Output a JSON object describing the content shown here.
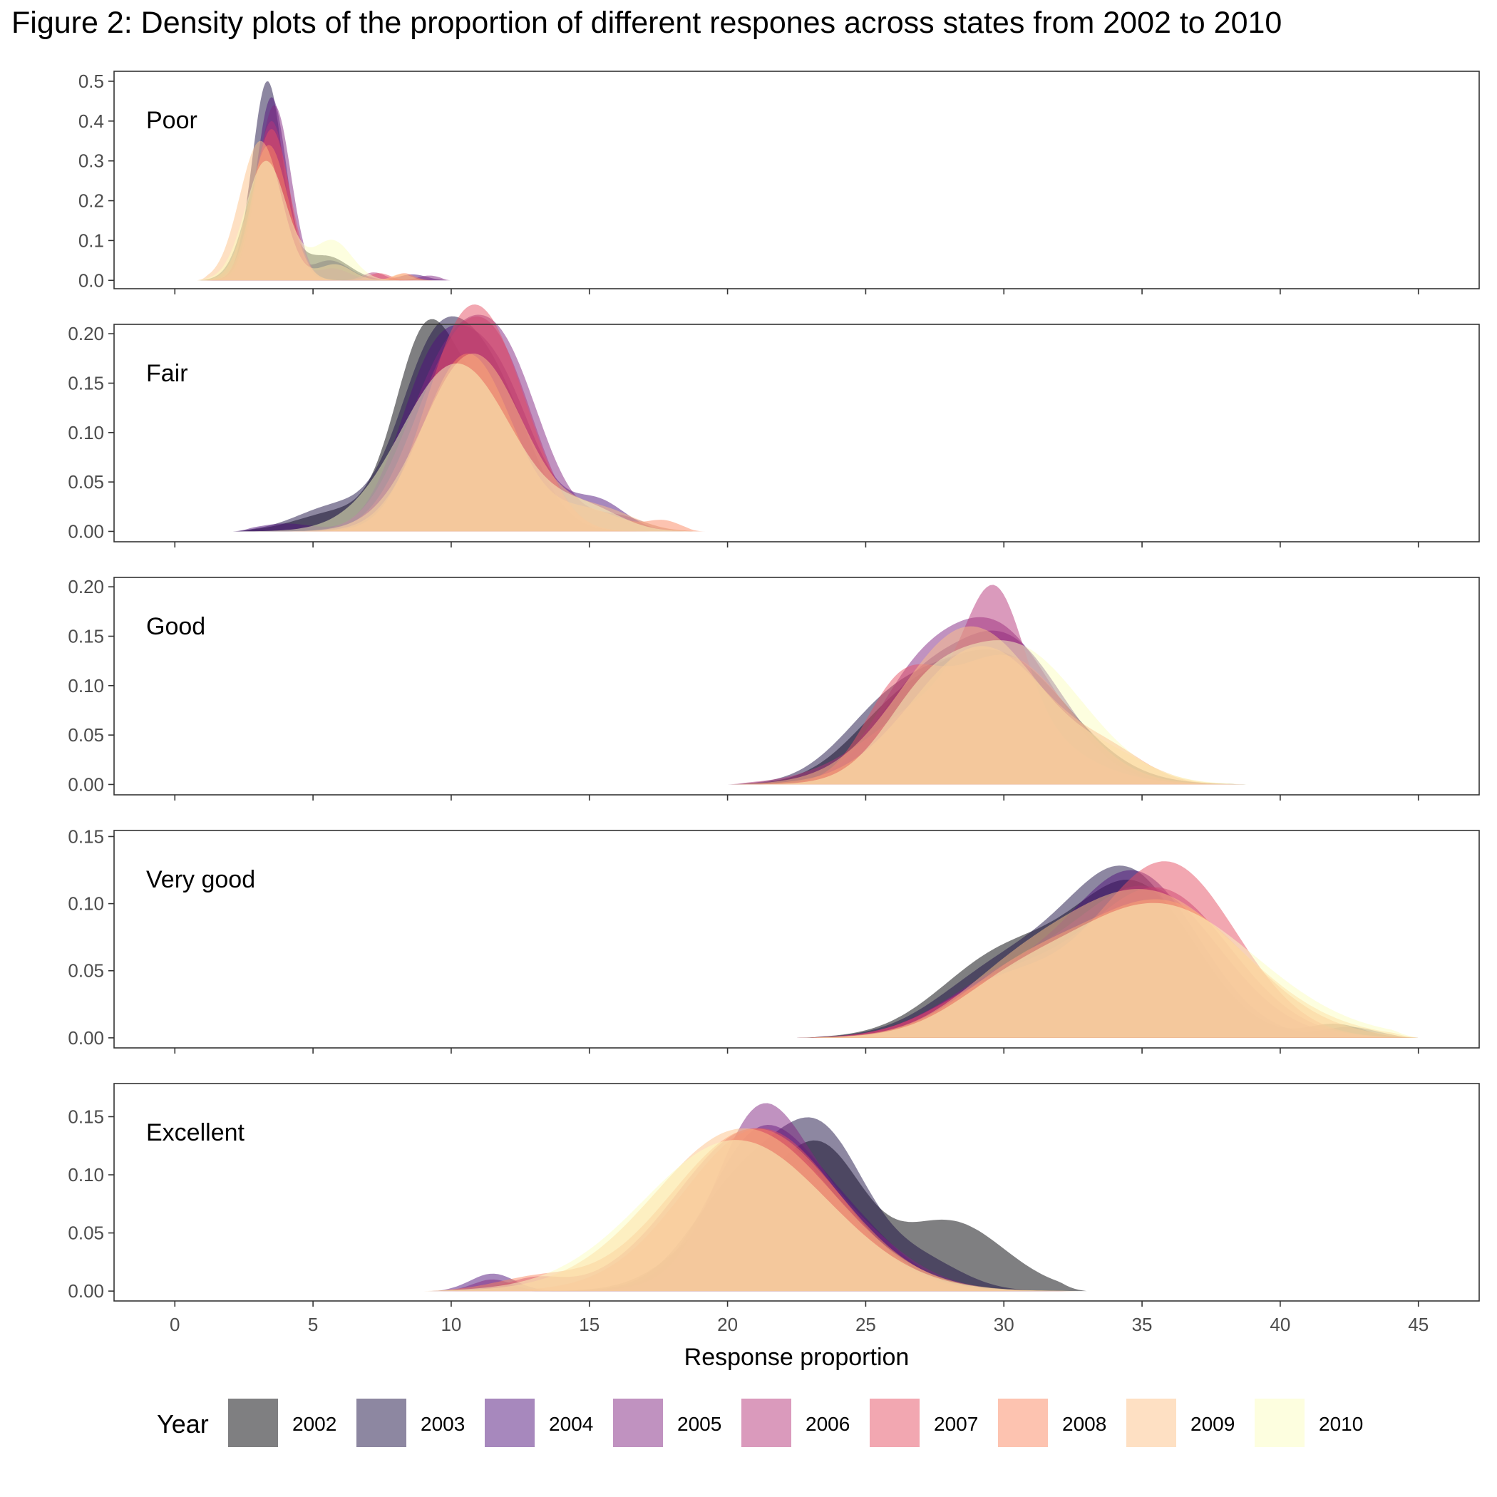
{
  "chart_data": {
    "type": "area",
    "title": "Figure 2: Density plots of the proportion of different respones across states from 2002 to 2010",
    "xlabel": "Response proportion",
    "xlim": [
      -2.2,
      47.2
    ],
    "xticks": [
      "0",
      "5",
      "10",
      "15",
      "20",
      "25",
      "30",
      "35",
      "40",
      "45"
    ],
    "grid": false,
    "legend_title": "Year",
    "legend_position": "bottom",
    "years": [
      {
        "name": "2002",
        "color": "#000004",
        "alpha": 0.5
      },
      {
        "name": "2003",
        "color": "#1c1044",
        "alpha": 0.5
      },
      {
        "name": "2004",
        "color": "#4f127b",
        "alpha": 0.5
      },
      {
        "name": "2005",
        "color": "#812581",
        "alpha": 0.5
      },
      {
        "name": "2006",
        "color": "#b5367a",
        "alpha": 0.5
      },
      {
        "name": "2007",
        "color": "#e55064",
        "alpha": 0.5
      },
      {
        "name": "2008",
        "color": "#fb8761",
        "alpha": 0.5
      },
      {
        "name": "2009",
        "color": "#fec287",
        "alpha": 0.5
      },
      {
        "name": "2010",
        "color": "#fcfdbf",
        "alpha": 0.5
      }
    ],
    "panels": [
      {
        "label": "Poor",
        "ylim": [
          -0.021,
          0.525
        ],
        "yticks": [
          {
            "v": 0.0,
            "t": "0.0"
          },
          {
            "v": 0.1,
            "t": "0.1"
          },
          {
            "v": 0.2,
            "t": "0.2"
          },
          {
            "v": 0.3,
            "t": "0.3"
          },
          {
            "v": 0.4,
            "t": "0.4"
          },
          {
            "v": 0.5,
            "t": "0.5"
          }
        ],
        "range": [
          0.8,
          10
        ],
        "series": [
          {
            "year": "2002",
            "comps": [
              [
                0.3,
                3.3,
                0.7
              ],
              [
                0.06,
                5.5,
                0.8
              ]
            ]
          },
          {
            "year": "2003",
            "comps": [
              [
                0.5,
                3.35,
                0.55
              ],
              [
                0.05,
                5.6,
                0.7
              ]
            ]
          },
          {
            "year": "2004",
            "comps": [
              [
                0.46,
                3.5,
                0.55
              ],
              [
                0.03,
                5.7,
                0.6
              ],
              [
                0.015,
                8.6,
                0.5
              ]
            ]
          },
          {
            "year": "2005",
            "comps": [
              [
                0.44,
                3.6,
                0.6
              ],
              [
                0.012,
                9.2,
                0.4
              ]
            ]
          },
          {
            "year": "2006",
            "comps": [
              [
                0.4,
                3.5,
                0.6
              ],
              [
                0.02,
                7.2,
                0.4
              ]
            ]
          },
          {
            "year": "2007",
            "comps": [
              [
                0.38,
                3.5,
                0.65
              ],
              [
                0.018,
                7.4,
                0.4
              ]
            ]
          },
          {
            "year": "2008",
            "comps": [
              [
                0.34,
                3.4,
                0.7
              ],
              [
                0.018,
                8.3,
                0.35
              ]
            ]
          },
          {
            "year": "2009",
            "comps": [
              [
                0.35,
                3.1,
                0.75
              ],
              [
                0.04,
                5.8,
                0.6
              ],
              [
                0.016,
                8.2,
                0.35
              ]
            ]
          },
          {
            "year": "2010",
            "comps": [
              [
                0.3,
                3.3,
                0.75
              ],
              [
                0.1,
                5.7,
                0.7
              ]
            ]
          }
        ]
      },
      {
        "label": "Fair",
        "ylim": [
          -0.0105,
          0.2095
        ],
        "yticks": [
          {
            "v": 0.0,
            "t": "0.00"
          },
          {
            "v": 0.05,
            "t": "0.05"
          },
          {
            "v": 0.1,
            "t": "0.10"
          },
          {
            "v": 0.15,
            "t": "0.15"
          },
          {
            "v": 0.2,
            "t": "0.20"
          }
        ],
        "range": [
          2.1,
          19.2
        ],
        "series": [
          {
            "year": "2002",
            "comps": [
              [
                0.17,
                9.0,
                1.1
              ],
              [
                0.12,
                11.3,
                1.5
              ],
              [
                0.02,
                6.0,
                1.5
              ]
            ]
          },
          {
            "year": "2003",
            "comps": [
              [
                0.16,
                9.3,
                1.3
              ],
              [
                0.14,
                11.5,
                1.4
              ],
              [
                0.025,
                5.8,
                1.4
              ]
            ]
          },
          {
            "year": "2004",
            "comps": [
              [
                0.15,
                9.3,
                1.3
              ],
              [
                0.15,
                11.6,
                1.4
              ],
              [
                0.03,
                15.3,
                1.0
              ],
              [
                0.008,
                4.0,
                1.0
              ]
            ]
          },
          {
            "year": "2005",
            "comps": [
              [
                0.15,
                9.7,
                1.5
              ],
              [
                0.15,
                12.0,
                1.4
              ],
              [
                0.015,
                16.0,
                1.0
              ]
            ]
          },
          {
            "year": "2006",
            "comps": [
              [
                0.16,
                10.0,
                1.5
              ],
              [
                0.12,
                12.0,
                1.3
              ]
            ]
          },
          {
            "year": "2007",
            "comps": [
              [
                0.18,
                10.3,
                1.4
              ],
              [
                0.1,
                12.1,
                1.3
              ]
            ]
          },
          {
            "year": "2008",
            "comps": [
              [
                0.18,
                10.6,
                1.6
              ],
              [
                0.02,
                15.0,
                1.2
              ],
              [
                0.01,
                17.7,
                0.6
              ]
            ]
          },
          {
            "year": "2009",
            "comps": [
              [
                0.18,
                10.8,
                1.8
              ],
              [
                0.02,
                15.5,
                1.2
              ]
            ]
          },
          {
            "year": "2010",
            "comps": [
              [
                0.17,
                10.2,
                2.0
              ],
              [
                0.02,
                15.0,
                1.2
              ]
            ]
          }
        ]
      },
      {
        "label": "Good",
        "ylim": [
          -0.0105,
          0.2095
        ],
        "yticks": [
          {
            "v": 0.0,
            "t": "0.00"
          },
          {
            "v": 0.05,
            "t": "0.05"
          },
          {
            "v": 0.1,
            "t": "0.10"
          },
          {
            "v": 0.15,
            "t": "0.15"
          },
          {
            "v": 0.2,
            "t": "0.20"
          }
        ],
        "range": [
          20,
          39
        ],
        "series": [
          {
            "year": "2002",
            "comps": [
              [
                0.13,
                29.8,
                2.5
              ],
              [
                0.05,
                26.0,
                1.8
              ]
            ]
          },
          {
            "year": "2003",
            "comps": [
              [
                0.13,
                29.8,
                2.5
              ],
              [
                0.06,
                25.8,
                1.8
              ]
            ]
          },
          {
            "year": "2004",
            "comps": [
              [
                0.15,
                29.9,
                2.2
              ],
              [
                0.06,
                26.5,
                1.5
              ]
            ]
          },
          {
            "year": "2005",
            "comps": [
              [
                0.16,
                29.6,
                2.2
              ],
              [
                0.06,
                26.5,
                1.5
              ]
            ]
          },
          {
            "year": "2006",
            "comps": [
              [
                0.11,
                29.7,
                1.0
              ],
              [
                0.1,
                28.5,
                2.8
              ]
            ]
          },
          {
            "year": "2007",
            "comps": [
              [
                0.13,
                30.0,
                2.3
              ],
              [
                0.08,
                26.2,
                1.3
              ]
            ]
          },
          {
            "year": "2008",
            "comps": [
              [
                0.14,
                29.2,
                2.5
              ],
              [
                0.02,
                34.0,
                1.3
              ]
            ]
          },
          {
            "year": "2009",
            "comps": [
              [
                0.16,
                28.8,
                2.5
              ],
              [
                0.02,
                34.0,
                1.5
              ]
            ]
          },
          {
            "year": "2010",
            "comps": [
              [
                0.14,
                30.3,
                2.5
              ],
              [
                0.05,
                27.0,
                1.5
              ]
            ]
          }
        ]
      },
      {
        "label": "Very good",
        "ylim": [
          -0.0075,
          0.1545
        ],
        "yticks": [
          {
            "v": 0.0,
            "t": "0.00"
          },
          {
            "v": 0.05,
            "t": "0.05"
          },
          {
            "v": 0.1,
            "t": "0.10"
          },
          {
            "v": 0.15,
            "t": "0.15"
          }
        ],
        "range": [
          22.5,
          45
        ],
        "series": [
          {
            "year": "2002",
            "comps": [
              [
                0.11,
                34.8,
                2.2
              ],
              [
                0.06,
                30.0,
                2.3
              ],
              [
                0.01,
                42.0,
                1.0
              ]
            ]
          },
          {
            "year": "2003",
            "comps": [
              [
                0.12,
                34.5,
                2.2
              ],
              [
                0.05,
                30.0,
                2.3
              ],
              [
                0.008,
                42.5,
                1.0
              ]
            ]
          },
          {
            "year": "2004",
            "comps": [
              [
                0.12,
                34.8,
                2.3
              ],
              [
                0.04,
                30.0,
                2.3
              ]
            ]
          },
          {
            "year": "2005",
            "comps": [
              [
                0.11,
                35.2,
                2.6
              ],
              [
                0.04,
                30.0,
                2.3
              ]
            ]
          },
          {
            "year": "2006",
            "comps": [
              [
                0.11,
                35.6,
                2.6
              ],
              [
                0.04,
                30.0,
                2.3
              ]
            ]
          },
          {
            "year": "2007",
            "comps": [
              [
                0.13,
                35.9,
                2.5
              ],
              [
                0.04,
                30.0,
                2.3
              ]
            ]
          },
          {
            "year": "2008",
            "comps": [
              [
                0.1,
                35.8,
                3.0
              ],
              [
                0.04,
                30.5,
                2.3
              ]
            ]
          },
          {
            "year": "2009",
            "comps": [
              [
                0.11,
                35.0,
                3.5
              ],
              [
                0.02,
                30.0,
                2.0
              ]
            ]
          },
          {
            "year": "2010",
            "comps": [
              [
                0.1,
                35.5,
                3.6
              ],
              [
                0.02,
                30.0,
                2.0
              ]
            ]
          }
        ]
      },
      {
        "label": "Excellent",
        "ylim": [
          -0.0085,
          0.1785
        ],
        "yticks": [
          {
            "v": 0.0,
            "t": "0.00"
          },
          {
            "v": 0.05,
            "t": "0.05"
          },
          {
            "v": 0.1,
            "t": "0.10"
          },
          {
            "v": 0.15,
            "t": "0.15"
          }
        ],
        "range": [
          9,
          33
        ],
        "series": [
          {
            "year": "2002",
            "comps": [
              [
                0.1,
                23.5,
                1.5
              ],
              [
                0.06,
                28.0,
                2.0
              ],
              [
                0.07,
                20.5,
                2.0
              ]
            ]
          },
          {
            "year": "2003",
            "comps": [
              [
                0.12,
                23.5,
                1.6
              ],
              [
                0.09,
                20.5,
                1.8
              ],
              [
                0.025,
                27.0,
                1.5
              ]
            ]
          },
          {
            "year": "2004",
            "comps": [
              [
                0.12,
                21.0,
                1.8
              ],
              [
                0.06,
                24.0,
                2.0
              ],
              [
                0.015,
                11.5,
                0.8
              ]
            ]
          },
          {
            "year": "2005",
            "comps": [
              [
                0.1,
                21.0,
                1.5
              ],
              [
                0.08,
                23.0,
                2.5
              ],
              [
                0.01,
                11.5,
                0.7
              ]
            ]
          },
          {
            "year": "2006",
            "comps": [
              [
                0.14,
                21.0,
                2.8
              ],
              [
                0.01,
                13.0,
                1.0
              ]
            ]
          },
          {
            "year": "2007",
            "comps": [
              [
                0.14,
                21.2,
                2.8
              ]
            ]
          },
          {
            "year": "2008",
            "comps": [
              [
                0.14,
                21.0,
                3.0
              ],
              [
                0.01,
                13.0,
                1.5
              ]
            ]
          },
          {
            "year": "2009",
            "comps": [
              [
                0.14,
                20.6,
                3.2
              ]
            ]
          },
          {
            "year": "2010",
            "comps": [
              [
                0.13,
                20.3,
                3.3
              ]
            ]
          }
        ]
      }
    ]
  }
}
